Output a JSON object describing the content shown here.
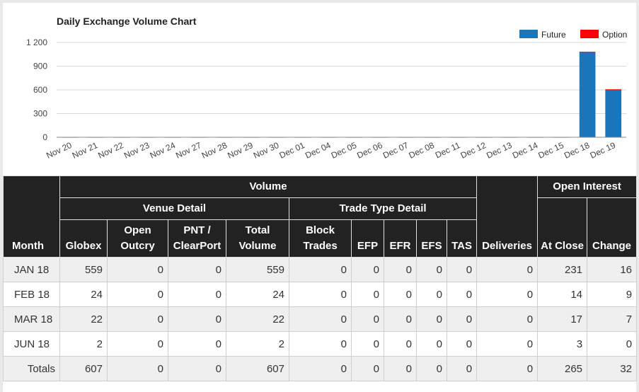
{
  "chart_data": {
    "type": "bar",
    "title": "Daily Exchange Volume Chart",
    "categories": [
      "Nov 20",
      "Nov 21",
      "Nov 22",
      "Nov 23",
      "Nov 24",
      "Nov 27",
      "Nov 28",
      "Nov 29",
      "Nov 30",
      "Dec 01",
      "Dec 04",
      "Dec 05",
      "Dec 06",
      "Dec 07",
      "Dec 08",
      "Dec 11",
      "Dec 12",
      "Dec 13",
      "Dec 14",
      "Dec 15",
      "Dec 18",
      "Dec 19"
    ],
    "series": [
      {
        "name": "Future",
        "color": "#1a75bb",
        "values": [
          0,
          0,
          0,
          0,
          0,
          0,
          0,
          0,
          0,
          0,
          0,
          0,
          0,
          0,
          0,
          0,
          0,
          0,
          0,
          0,
          1075,
          600
        ]
      },
      {
        "name": "Option",
        "color": "#ff0000",
        "values": [
          0,
          0,
          0,
          0,
          0,
          0,
          0,
          0,
          0,
          0,
          0,
          0,
          0,
          0,
          0,
          0,
          0,
          0,
          0,
          0,
          7,
          7
        ]
      }
    ],
    "stacked": true,
    "yticks": [
      "0",
      "300",
      "600",
      "900",
      "1 200"
    ],
    "ylim": [
      0,
      1200
    ],
    "grid": true,
    "legend_position": "top-right"
  },
  "table": {
    "headers": {
      "month": "Month",
      "volume": "Volume",
      "venue_detail": "Venue Detail",
      "trade_type_detail": "Trade Type Detail",
      "deliveries": "Deliveries",
      "open_interest": "Open Interest",
      "globex": "Globex",
      "open_outcry": "Open Outcry",
      "pnt_clearport": "PNT / ClearPort",
      "total_volume": "Total Volume",
      "block_trades": "Block Trades",
      "efp": "EFP",
      "efr": "EFR",
      "efs": "EFS",
      "tas": "TAS",
      "at_close": "At Close",
      "change": "Change"
    },
    "rows": [
      {
        "month": "JAN 18",
        "globex": "559",
        "open_outcry": "0",
        "pnt": "0",
        "total": "559",
        "block": "0",
        "efp": "0",
        "efr": "0",
        "efs": "0",
        "tas": "0",
        "deliveries": "0",
        "at_close": "231",
        "change": "16"
      },
      {
        "month": "FEB 18",
        "globex": "24",
        "open_outcry": "0",
        "pnt": "0",
        "total": "24",
        "block": "0",
        "efp": "0",
        "efr": "0",
        "efs": "0",
        "tas": "0",
        "deliveries": "0",
        "at_close": "14",
        "change": "9"
      },
      {
        "month": "MAR 18",
        "globex": "22",
        "open_outcry": "0",
        "pnt": "0",
        "total": "22",
        "block": "0",
        "efp": "0",
        "efr": "0",
        "efs": "0",
        "tas": "0",
        "deliveries": "0",
        "at_close": "17",
        "change": "7"
      },
      {
        "month": "JUN 18",
        "globex": "2",
        "open_outcry": "0",
        "pnt": "0",
        "total": "2",
        "block": "0",
        "efp": "0",
        "efr": "0",
        "efs": "0",
        "tas": "0",
        "deliveries": "0",
        "at_close": "3",
        "change": "0"
      }
    ],
    "totals": {
      "month": "Totals",
      "globex": "607",
      "open_outcry": "0",
      "pnt": "0",
      "total": "607",
      "block": "0",
      "efp": "0",
      "efr": "0",
      "efs": "0",
      "tas": "0",
      "deliveries": "0",
      "at_close": "265",
      "change": "32"
    }
  }
}
